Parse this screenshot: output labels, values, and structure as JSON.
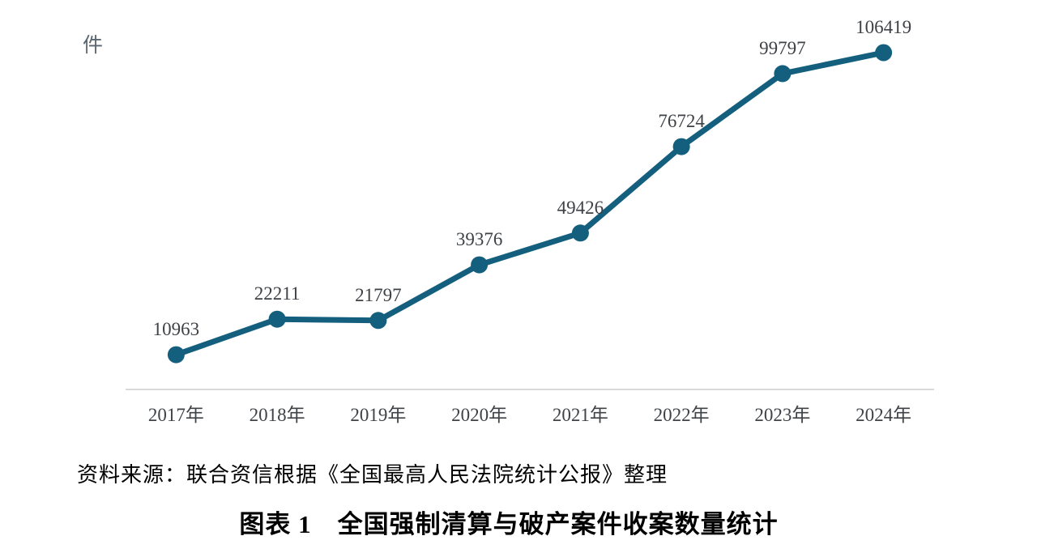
{
  "unit_label": "件",
  "source_note": "资料来源：联合资信根据《全国最高人民法院统计公报》整理",
  "caption": "图表 1　全国强制清算与破产案件收案数量统计",
  "colors": {
    "line": "#155f7e",
    "marker": "#155f7e",
    "axis_line": "#d9d9d9",
    "data_label": "#3e4145",
    "tick_label": "#3f4347",
    "unit_label": "#5b6770",
    "background": "#ffffff"
  },
  "chart_data": {
    "type": "line",
    "categories": [
      "2017年",
      "2018年",
      "2019年",
      "2020年",
      "2021年",
      "2022年",
      "2023年",
      "2024年"
    ],
    "values": [
      10963,
      22211,
      21797,
      39376,
      49426,
      76724,
      99797,
      106419
    ],
    "title": "图表 1　全国强制清算与破产案件收案数量统计",
    "xlabel": "",
    "ylabel": "件",
    "ylim": [
      0,
      110000
    ],
    "grid": false,
    "legend": "none",
    "data_labels": true,
    "marker": "circle"
  }
}
